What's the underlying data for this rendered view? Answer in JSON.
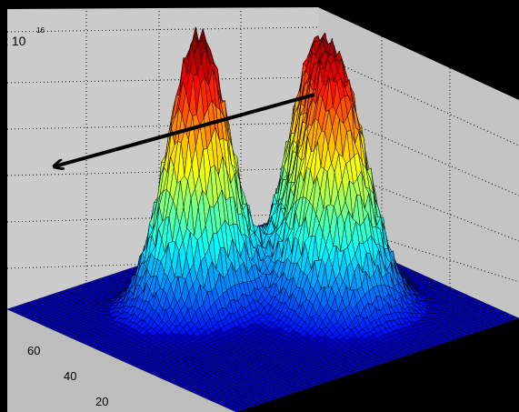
{
  "chart_data": {
    "type": "surface",
    "title": "",
    "xlabel": "",
    "ylabel": "",
    "zlabel": "",
    "z_exponent_label": "x 10",
    "z_exponent_power": "16",
    "x_ticks": [
      "20",
      "40",
      "60"
    ],
    "y_ticks": [
      "20",
      "40",
      "60"
    ],
    "xlim": [
      0,
      70
    ],
    "ylim": [
      0,
      70
    ],
    "grid": true,
    "colormap": "jet",
    "peaks": [
      {
        "x": 28,
        "y": 46,
        "height": 1.0,
        "sx": 6.5,
        "sy": 5.5
      },
      {
        "x": 47,
        "y": 28,
        "height": 0.85,
        "sx": 6.0,
        "sy": 7.0
      },
      {
        "x": 52,
        "y": 40,
        "height": 0.72,
        "sx": 5.0,
        "sy": 6.0
      }
    ],
    "annotation": {
      "type": "arrow",
      "color": "#000000"
    },
    "colors": {
      "background": "#000000",
      "axes_face": "#c6c6c6",
      "grid": "#000000"
    }
  }
}
